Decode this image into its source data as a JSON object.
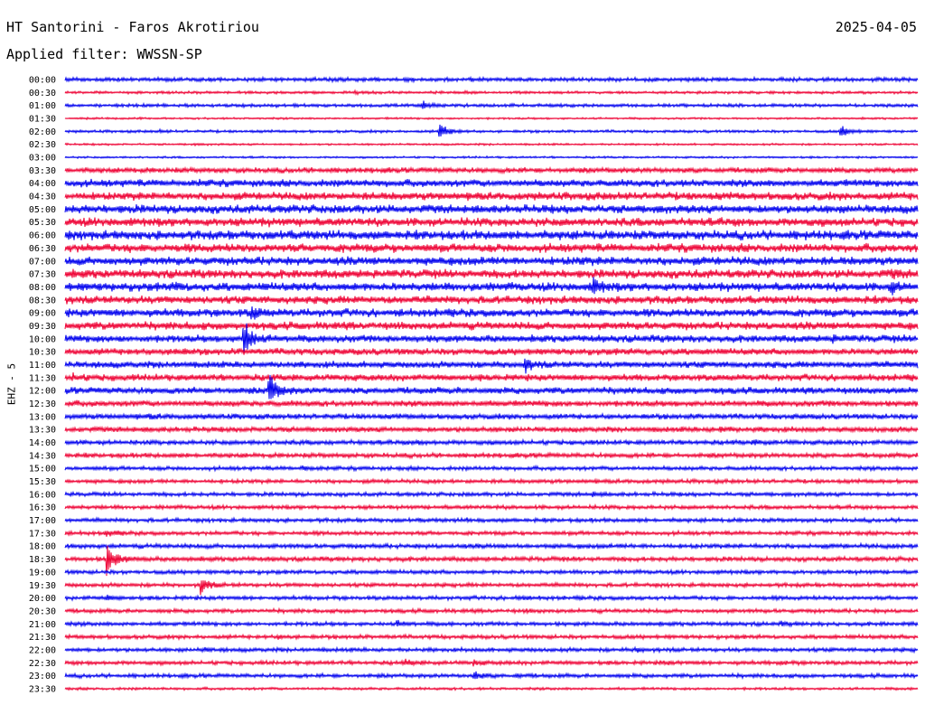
{
  "header": {
    "station": "HT Santorini - Faros Akrotiriou",
    "date": "2025-04-05",
    "filter": "Applied filter: WWSSN-SP"
  },
  "chart_data": {
    "type": "line",
    "title": "HT Santorini - Faros Akrotiriou",
    "ylabel": "EHZ - 5",
    "filter": "WWSSN-SP",
    "date": "2025-04-05",
    "colors": [
      "#0000ee",
      "#ee0033"
    ],
    "rows": [
      {
        "label": "00:00",
        "color": "#0000ee",
        "noise": 0.6,
        "events": [
          {
            "t": 0.4,
            "amp": 0.3
          }
        ]
      },
      {
        "label": "00:30",
        "color": "#ee0033",
        "noise": 0.4,
        "events": [
          {
            "t": 0.34,
            "amp": 0.25
          },
          {
            "t": 0.47,
            "amp": 0.15
          },
          {
            "t": 0.54,
            "amp": 0.1
          }
        ]
      },
      {
        "label": "01:00",
        "color": "#0000ee",
        "noise": 0.5,
        "events": [
          {
            "t": 0.27,
            "amp": 0.2
          },
          {
            "t": 0.42,
            "amp": 0.9
          }
        ]
      },
      {
        "label": "01:30",
        "color": "#ee0033",
        "noise": 0.3,
        "events": []
      },
      {
        "label": "02:00",
        "color": "#0000ee",
        "noise": 0.4,
        "events": [
          {
            "t": 0.11,
            "amp": 0.25
          },
          {
            "t": 0.44,
            "amp": 2.5
          },
          {
            "t": 0.91,
            "amp": 1.6
          }
        ]
      },
      {
        "label": "02:30",
        "color": "#ee0033",
        "noise": 0.3,
        "events": [
          {
            "t": 0.15,
            "amp": 0.15
          }
        ]
      },
      {
        "label": "03:00",
        "color": "#0000ee",
        "noise": 0.3,
        "events": []
      },
      {
        "label": "03:30",
        "color": "#ee0033",
        "noise": 0.8,
        "events": []
      },
      {
        "label": "04:00",
        "color": "#0000ee",
        "noise": 1.1,
        "events": []
      },
      {
        "label": "04:30",
        "color": "#ee0033",
        "noise": 1.2,
        "events": []
      },
      {
        "label": "05:00",
        "color": "#0000ee",
        "noise": 1.3,
        "events": []
      },
      {
        "label": "05:30",
        "color": "#ee0033",
        "noise": 1.3,
        "events": []
      },
      {
        "label": "06:00",
        "color": "#0000ee",
        "noise": 1.4,
        "events": []
      },
      {
        "label": "06:30",
        "color": "#ee0033",
        "noise": 1.3,
        "events": []
      },
      {
        "label": "07:00",
        "color": "#0000ee",
        "noise": 1.3,
        "events": [
          {
            "t": 0.6,
            "amp": 0.4
          }
        ]
      },
      {
        "label": "07:30",
        "color": "#ee0033",
        "noise": 1.3,
        "events": [
          {
            "t": 0.97,
            "amp": 0.6
          }
        ]
      },
      {
        "label": "08:00",
        "color": "#0000ee",
        "noise": 1.3,
        "events": [
          {
            "t": 0.13,
            "amp": 0.7
          },
          {
            "t": 0.62,
            "amp": 1.8
          },
          {
            "t": 0.97,
            "amp": 1.2
          }
        ]
      },
      {
        "label": "08:30",
        "color": "#ee0033",
        "noise": 1.2,
        "events": []
      },
      {
        "label": "09:00",
        "color": "#0000ee",
        "noise": 1.2,
        "events": [
          {
            "t": 0.22,
            "amp": 1.4
          }
        ]
      },
      {
        "label": "09:30",
        "color": "#ee0033",
        "noise": 1.2,
        "events": []
      },
      {
        "label": "10:00",
        "color": "#0000ee",
        "noise": 1.1,
        "events": [
          {
            "t": 0.21,
            "amp": 5.0
          },
          {
            "t": 0.9,
            "amp": 0.4
          }
        ]
      },
      {
        "label": "10:30",
        "color": "#ee0033",
        "noise": 1.0,
        "events": [
          {
            "t": 0.13,
            "amp": 0.4
          }
        ]
      },
      {
        "label": "11:00",
        "color": "#0000ee",
        "noise": 1.0,
        "events": [
          {
            "t": 0.54,
            "amp": 1.6
          }
        ]
      },
      {
        "label": "11:30",
        "color": "#ee0033",
        "noise": 1.0,
        "events": [
          {
            "t": 0.01,
            "amp": 0.5
          }
        ]
      },
      {
        "label": "12:00",
        "color": "#0000ee",
        "noise": 1.0,
        "events": [
          {
            "t": 0.24,
            "amp": 4.2
          }
        ]
      },
      {
        "label": "12:30",
        "color": "#ee0033",
        "noise": 0.9,
        "events": []
      },
      {
        "label": "13:00",
        "color": "#0000ee",
        "noise": 0.8,
        "events": [
          {
            "t": 0.1,
            "amp": 0.3
          }
        ]
      },
      {
        "label": "13:30",
        "color": "#ee0033",
        "noise": 0.8,
        "events": [
          {
            "t": 0.77,
            "amp": 0.5
          }
        ]
      },
      {
        "label": "14:00",
        "color": "#0000ee",
        "noise": 0.7,
        "events": [
          {
            "t": 0.41,
            "amp": 0.3
          },
          {
            "t": 0.81,
            "amp": 0.4
          }
        ]
      },
      {
        "label": "14:30",
        "color": "#ee0033",
        "noise": 0.7,
        "events": []
      },
      {
        "label": "15:00",
        "color": "#0000ee",
        "noise": 0.6,
        "events": [
          {
            "t": 0.28,
            "amp": 0.6
          }
        ]
      },
      {
        "label": "15:30",
        "color": "#ee0033",
        "noise": 0.6,
        "events": []
      },
      {
        "label": "16:00",
        "color": "#0000ee",
        "noise": 0.6,
        "events": [
          {
            "t": 0.62,
            "amp": 0.3
          }
        ]
      },
      {
        "label": "16:30",
        "color": "#ee0033",
        "noise": 0.6,
        "events": []
      },
      {
        "label": "17:00",
        "color": "#0000ee",
        "noise": 0.6,
        "events": [
          {
            "t": 0.47,
            "amp": 0.2
          }
        ]
      },
      {
        "label": "17:30",
        "color": "#ee0033",
        "noise": 0.6,
        "events": [
          {
            "t": 0.05,
            "amp": 0.8
          }
        ]
      },
      {
        "label": "18:00",
        "color": "#0000ee",
        "noise": 0.7,
        "events": []
      },
      {
        "label": "18:30",
        "color": "#ee0033",
        "noise": 0.7,
        "events": [
          {
            "t": 0.05,
            "amp": 4.6
          }
        ]
      },
      {
        "label": "19:00",
        "color": "#0000ee",
        "noise": 0.6,
        "events": []
      },
      {
        "label": "19:30",
        "color": "#ee0033",
        "noise": 0.6,
        "events": [
          {
            "t": 0.16,
            "amp": 2.3
          }
        ]
      },
      {
        "label": "20:00",
        "color": "#0000ee",
        "noise": 0.6,
        "events": [
          {
            "t": 0.05,
            "amp": 0.4
          },
          {
            "t": 0.53,
            "amp": 0.3
          }
        ]
      },
      {
        "label": "20:30",
        "color": "#ee0033",
        "noise": 0.6,
        "events": [
          {
            "t": 0.54,
            "amp": 0.2
          }
        ]
      },
      {
        "label": "21:00",
        "color": "#0000ee",
        "noise": 0.6,
        "events": [
          {
            "t": 0.39,
            "amp": 0.6
          },
          {
            "t": 0.84,
            "amp": 0.3
          }
        ]
      },
      {
        "label": "21:30",
        "color": "#ee0033",
        "noise": 0.6,
        "events": [
          {
            "t": 0.25,
            "amp": 0.3
          }
        ]
      },
      {
        "label": "22:00",
        "color": "#0000ee",
        "noise": 0.6,
        "events": [
          {
            "t": 0.16,
            "amp": 0.4
          },
          {
            "t": 0.67,
            "amp": 0.5
          }
        ]
      },
      {
        "label": "22:30",
        "color": "#ee0033",
        "noise": 0.6,
        "events": [
          {
            "t": 0.4,
            "amp": 0.6
          },
          {
            "t": 0.48,
            "amp": 0.5
          },
          {
            "t": 0.7,
            "amp": 0.3
          },
          {
            "t": 0.84,
            "amp": 0.3
          }
        ]
      },
      {
        "label": "23:00",
        "color": "#0000ee",
        "noise": 0.6,
        "events": [
          {
            "t": 0.48,
            "amp": 1.0
          },
          {
            "t": 0.53,
            "amp": 0.3
          }
        ]
      },
      {
        "label": "23:30",
        "color": "#ee0033",
        "noise": 0.4,
        "events": []
      }
    ]
  }
}
